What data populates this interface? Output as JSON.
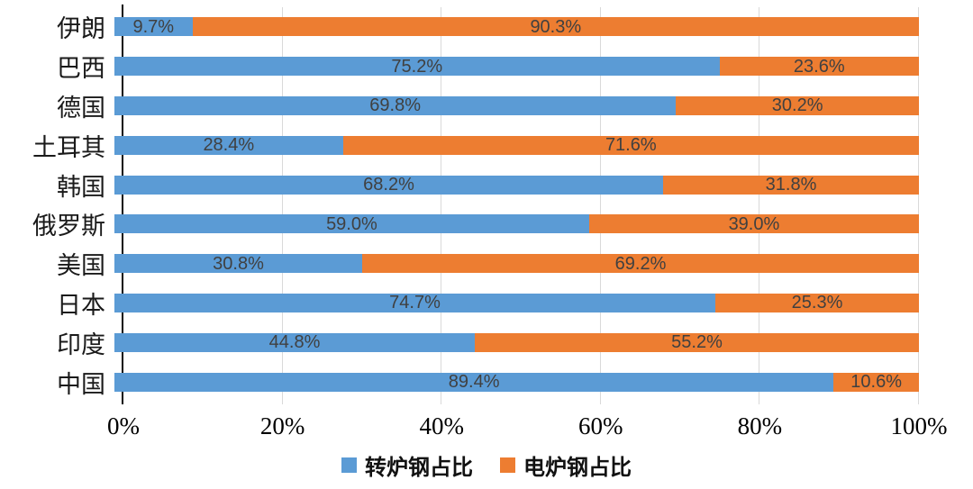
{
  "chart_data": {
    "type": "bar",
    "orientation": "horizontal",
    "stacked": true,
    "stack_total_percent": 100,
    "title": "",
    "xlabel": "",
    "ylabel": "",
    "xlim": [
      0,
      100
    ],
    "grid": true,
    "legend_position": "bottom",
    "categories": [
      "伊朗",
      "巴西",
      "德国",
      "土耳其",
      "韩国",
      "俄罗斯",
      "美国",
      "日本",
      "印度",
      "中国"
    ],
    "series": [
      {
        "name": "转炉钢占比",
        "color": "#5B9BD5",
        "values": [
          9.7,
          75.2,
          69.8,
          28.4,
          68.2,
          59.0,
          30.8,
          74.7,
          44.8,
          89.4
        ],
        "value_labels": [
          "9.7%",
          "75.2%",
          "69.8%",
          "28.4%",
          "68.2%",
          "59.0%",
          "30.8%",
          "74.7%",
          "44.8%",
          "89.4%"
        ]
      },
      {
        "name": "电炉钢占比",
        "color": "#ED7D31",
        "values": [
          90.3,
          23.6,
          30.2,
          71.6,
          31.8,
          39.0,
          69.2,
          25.3,
          55.2,
          10.6
        ],
        "value_labels": [
          "90.3%",
          "23.6%",
          "30.2%",
          "71.6%",
          "31.8%",
          "39.0%",
          "69.2%",
          "25.3%",
          "55.2%",
          "10.6%"
        ]
      }
    ],
    "x_ticks": [
      "0%",
      "20%",
      "40%",
      "60%",
      "80%",
      "100%"
    ],
    "x_tick_values": [
      0,
      20,
      40,
      60,
      80,
      100
    ]
  },
  "colors": {
    "gridline": "#d9d9d9",
    "axis_line": "#0a0a0a",
    "data_label": "#404040",
    "category_label": "#1a1a1a",
    "background": "#ffffff"
  }
}
